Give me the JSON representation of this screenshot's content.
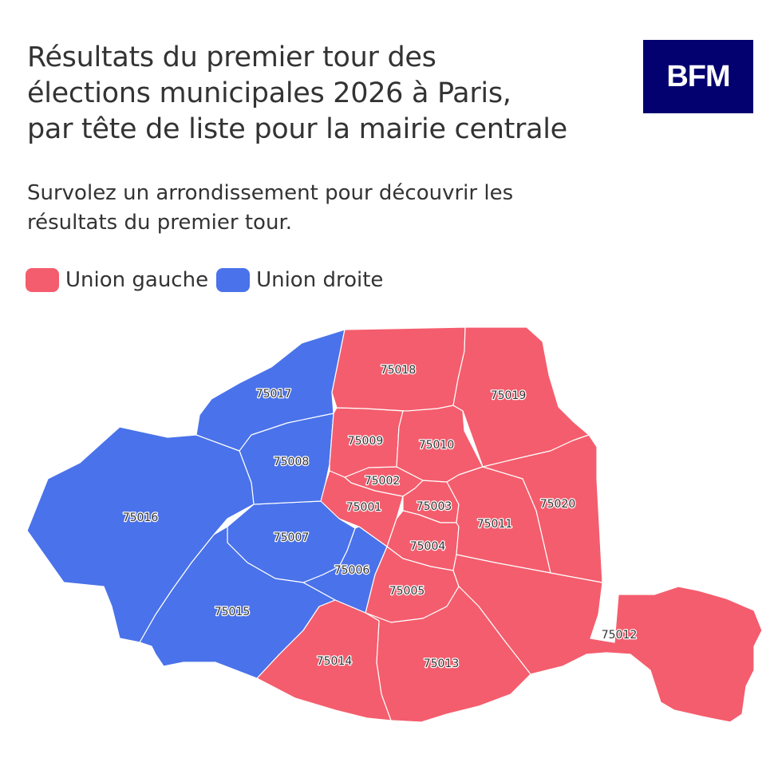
{
  "header": {
    "title_lines": [
      "Résultats du premier tour des",
      "élections municipales 2026 à Paris,",
      "par tête de liste pour la mairie centrale"
    ],
    "subtitle_lines": [
      "Survolez un arrondissement pour découvrir les",
      "résultats du premier tour."
    ],
    "logo": "BFM"
  },
  "legend": [
    {
      "label": "Union gauche",
      "color": "#f45d6d"
    },
    {
      "label": "Union droite",
      "color": "#4a72ea"
    }
  ],
  "map_data": {
    "type": "choropleth",
    "regions": [
      {
        "code": "75001",
        "winner": "Union gauche"
      },
      {
        "code": "75002",
        "winner": "Union gauche"
      },
      {
        "code": "75003",
        "winner": "Union gauche"
      },
      {
        "code": "75004",
        "winner": "Union gauche"
      },
      {
        "code": "75005",
        "winner": "Union gauche"
      },
      {
        "code": "75006",
        "winner": "Union droite"
      },
      {
        "code": "75007",
        "winner": "Union droite"
      },
      {
        "code": "75008",
        "winner": "Union droite"
      },
      {
        "code": "75009",
        "winner": "Union gauche"
      },
      {
        "code": "75010",
        "winner": "Union gauche"
      },
      {
        "code": "75011",
        "winner": "Union gauche"
      },
      {
        "code": "75012",
        "winner": "Union gauche"
      },
      {
        "code": "75013",
        "winner": "Union gauche"
      },
      {
        "code": "75014",
        "winner": "Union gauche"
      },
      {
        "code": "75015",
        "winner": "Union droite"
      },
      {
        "code": "75016",
        "winner": "Union droite"
      },
      {
        "code": "75017",
        "winner": "Union droite"
      },
      {
        "code": "75018",
        "winner": "Union gauche"
      },
      {
        "code": "75019",
        "winner": "Union gauche"
      },
      {
        "code": "75020",
        "winner": "Union gauche"
      }
    ]
  }
}
